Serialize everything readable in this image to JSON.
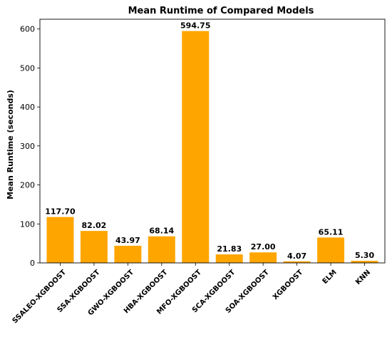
{
  "chart_data": {
    "type": "bar",
    "title": "Mean Runtime of Compared Models",
    "xlabel": "",
    "ylabel": "Mean Runtime (seconds)",
    "ylim": [
      0,
      625
    ],
    "yticks": [
      0,
      100,
      200,
      300,
      400,
      500,
      600
    ],
    "grid": false,
    "bar_color": "#FFA500",
    "categories": [
      "SSALEO-XGBOOST",
      "SSA-XGBOOST",
      "GWO-XGBOOST",
      "HBA-XGBOOST",
      "MFO-XGBOOST",
      "SCA-XGBOOST",
      "SOA-XGBOOST",
      "XGBOOST",
      "ELM",
      "KNN"
    ],
    "values": [
      117.7,
      82.02,
      43.97,
      68.14,
      594.75,
      21.83,
      27.0,
      4.07,
      65.11,
      5.3
    ],
    "value_labels": [
      "117.70",
      "82.02",
      "43.97",
      "68.14",
      "594.75",
      "21.83",
      "27.00",
      "4.07",
      "65.11",
      "5.30"
    ]
  }
}
